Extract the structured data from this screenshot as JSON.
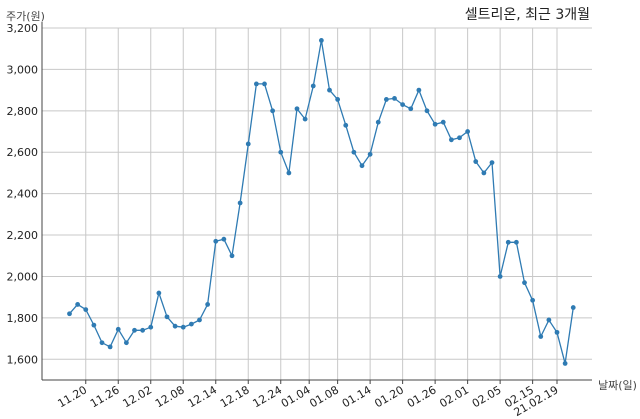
{
  "chart_data": {
    "type": "line",
    "title": "셀트리온, 최근 3개월",
    "ylabel": "주가(원)",
    "xlabel": "날짜(일)",
    "ylim": [
      1500,
      3200
    ],
    "yticks": [
      1600,
      1800,
      2000,
      2200,
      2400,
      2600,
      2800,
      3000,
      3200
    ],
    "ytick_labels": [
      "1,600",
      "1,800",
      "2,000",
      "2,200",
      "2,400",
      "2,600",
      "2,800",
      "3,000",
      "3,200"
    ],
    "xticks": [
      {
        "index": 2,
        "label": "11.20"
      },
      {
        "index": 6,
        "label": "11.26"
      },
      {
        "index": 10,
        "label": "12.02"
      },
      {
        "index": 14,
        "label": "12.08"
      },
      {
        "index": 18,
        "label": "12.14"
      },
      {
        "index": 22,
        "label": "12.18"
      },
      {
        "index": 26,
        "label": "12.24"
      },
      {
        "index": 29.5,
        "label": "01.04"
      },
      {
        "index": 33,
        "label": "01.08"
      },
      {
        "index": 37,
        "label": "01.14"
      },
      {
        "index": 41,
        "label": "01.20"
      },
      {
        "index": 45,
        "label": "01.26"
      },
      {
        "index": 49,
        "label": "02.01"
      },
      {
        "index": 53,
        "label": "02.05"
      },
      {
        "index": 57,
        "label": "02.15"
      },
      {
        "index": 60,
        "label": "21.02.19"
      }
    ],
    "grid": true,
    "color": "#2f7bb3",
    "series": [
      {
        "values": [
          1820,
          1865,
          1840,
          1765,
          1680,
          1660,
          1745,
          1680,
          1740,
          1740,
          1755,
          1920,
          1805,
          1760,
          1755,
          1770,
          1790,
          1865,
          2170,
          2180,
          2100,
          2355,
          2640,
          2930,
          2930,
          2800,
          2600,
          2500,
          2810,
          2760,
          2920,
          3140,
          2900,
          2855,
          2730,
          2600,
          2535,
          2590,
          2745,
          2855,
          2860,
          2830,
          2810,
          2900,
          2800,
          2735,
          2745,
          2660,
          2670,
          2700,
          2555,
          2500,
          2550,
          2000,
          2165,
          2165,
          1970,
          1885,
          1710,
          1790,
          1730,
          1580,
          1850
        ]
      }
    ]
  }
}
